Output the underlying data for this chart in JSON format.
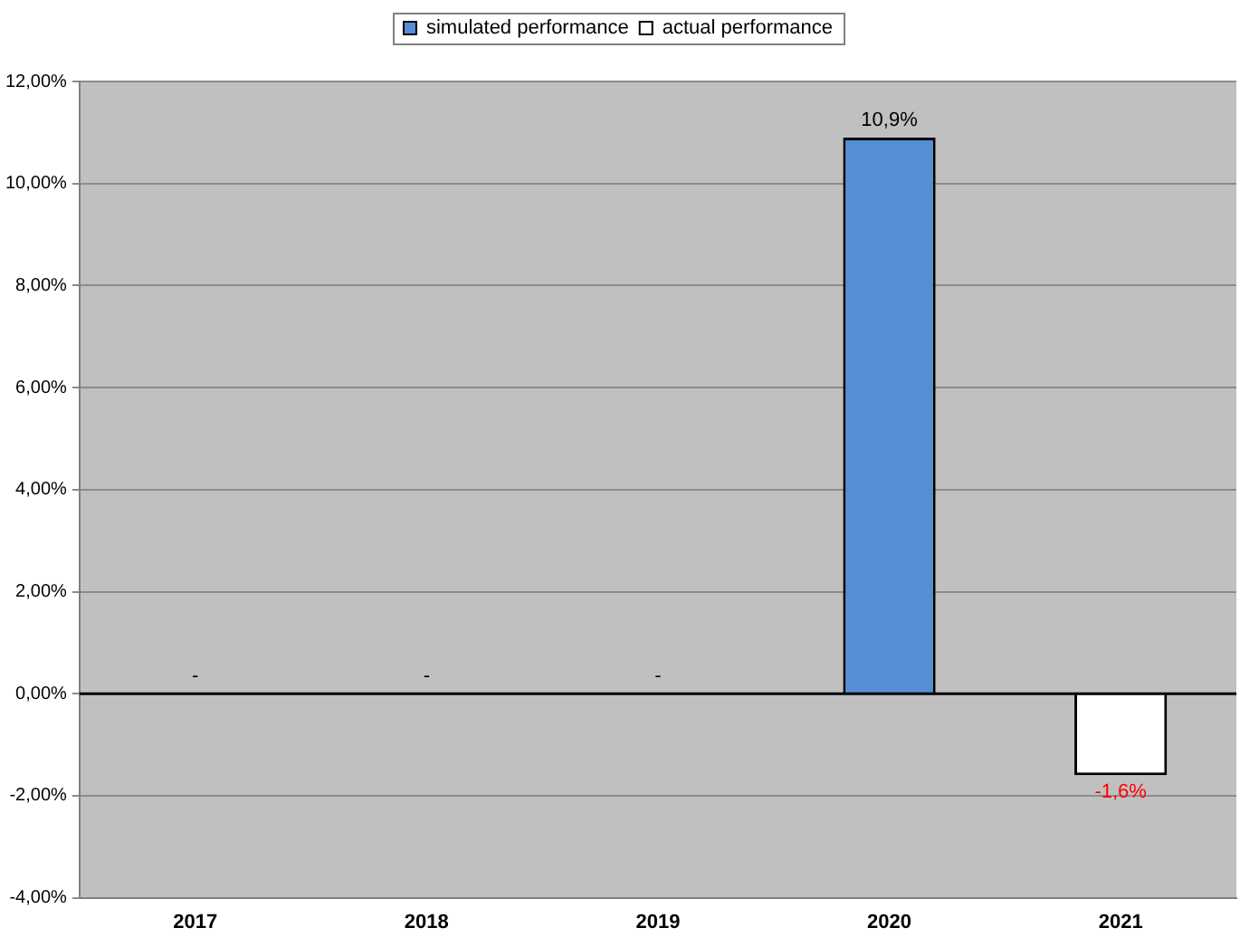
{
  "chart_data": {
    "type": "bar",
    "categories": [
      "2017",
      "2018",
      "2019",
      "2020",
      "2021"
    ],
    "series": [
      {
        "name": "simulated performance",
        "color": "#558ed5",
        "values": [
          null,
          null,
          null,
          10.9,
          null
        ],
        "value_labels": [
          "-",
          "-",
          "-",
          "10,9%",
          null
        ]
      },
      {
        "name": "actual performance",
        "color": "#ffffff",
        "values": [
          null,
          null,
          null,
          null,
          -1.6
        ],
        "value_labels": [
          null,
          null,
          null,
          null,
          "-1,6%"
        ]
      }
    ],
    "ylim": [
      -4,
      12
    ],
    "yticks": [
      {
        "value": -4,
        "label": "-4,00%"
      },
      {
        "value": -2,
        "label": "-2,00%"
      },
      {
        "value": 0,
        "label": "0,00%"
      },
      {
        "value": 2,
        "label": "2,00%"
      },
      {
        "value": 4,
        "label": "4,00%"
      },
      {
        "value": 6,
        "label": "6,00%"
      },
      {
        "value": 8,
        "label": "8,00%"
      },
      {
        "value": 10,
        "label": "10,00%"
      },
      {
        "value": 12,
        "label": "12,00%"
      }
    ],
    "grid": "y",
    "legend": "top"
  }
}
